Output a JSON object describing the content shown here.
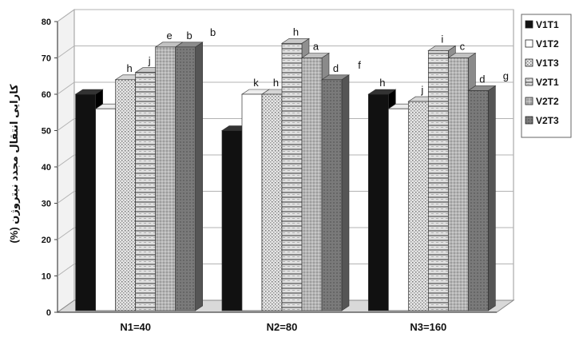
{
  "chart_data": {
    "type": "bar",
    "categories": [
      "N1=40",
      "N2=80",
      "N3=160"
    ],
    "ylabel": "کارایی انتقال مجدد نیتروژن (%)",
    "ylim": [
      0,
      80
    ],
    "yticks": [
      0,
      10,
      20,
      30,
      40,
      50,
      60,
      70,
      80
    ],
    "grid": true,
    "legend_position": "right",
    "series": [
      {
        "name": "V1T1",
        "values": [
          60,
          50,
          60
        ],
        "labels": [
          "",
          "",
          "h"
        ],
        "color": "#111111",
        "pattern": "solid"
      },
      {
        "name": "V1T2",
        "values": [
          56,
          60,
          56
        ],
        "labels": [
          "",
          "k",
          ""
        ],
        "color": "#ffffff",
        "pattern": "white"
      },
      {
        "name": "V1T3",
        "values": [
          64,
          60,
          58
        ],
        "labels": [
          "h",
          "h",
          "j"
        ],
        "color": "#cfcfcf",
        "pattern": "dots"
      },
      {
        "name": "V2T1",
        "values": [
          66,
          74,
          72
        ],
        "labels": [
          "j",
          "h",
          "i"
        ],
        "color": "#bcbcbc",
        "pattern": "hstripe"
      },
      {
        "name": "V2T2",
        "values": [
          73,
          70,
          70
        ],
        "labels": [
          "e",
          "a",
          "c"
        ],
        "color": "#a8a8a8",
        "pattern": "shade"
      },
      {
        "name": "V2T3",
        "values": [
          73,
          64,
          61
        ],
        "labels": [
          "b",
          "d",
          "d"
        ],
        "color": "#7d7d7d",
        "pattern": "dark"
      }
    ],
    "extra_labels": [
      {
        "text": "b",
        "category": "N1=40"
      },
      {
        "text": "f",
        "category": "N2=80"
      },
      {
        "text": "g",
        "category": "N3=160"
      }
    ]
  }
}
